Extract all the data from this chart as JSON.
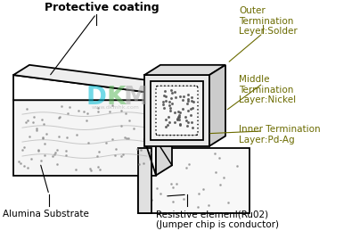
{
  "background_color": "#ffffff",
  "line_color": "#000000",
  "labels": {
    "protective_coating": "Protective coating",
    "outer_termination": "Outer\nTermination\nLeyer:Solder",
    "middle_termination": "Middle\nTermination\nLayer:Nickel",
    "inner_termination": "Inner Termination\nLayer:Pd-Ag",
    "alumina_substrate": "Alumina Substrate",
    "resistive_element": "Resistive elemenl(Ru02)\n(Jumper chip is conductor)"
  },
  "label_colors": {
    "protective_coating": "#000000",
    "outer_termination": "#6b6b00",
    "middle_termination": "#6b6b00",
    "inner_termination": "#6b6b00",
    "alumina_substrate": "#000000",
    "resistive_element": "#000000"
  },
  "figsize": [
    4.04,
    2.59
  ],
  "dpi": 100
}
